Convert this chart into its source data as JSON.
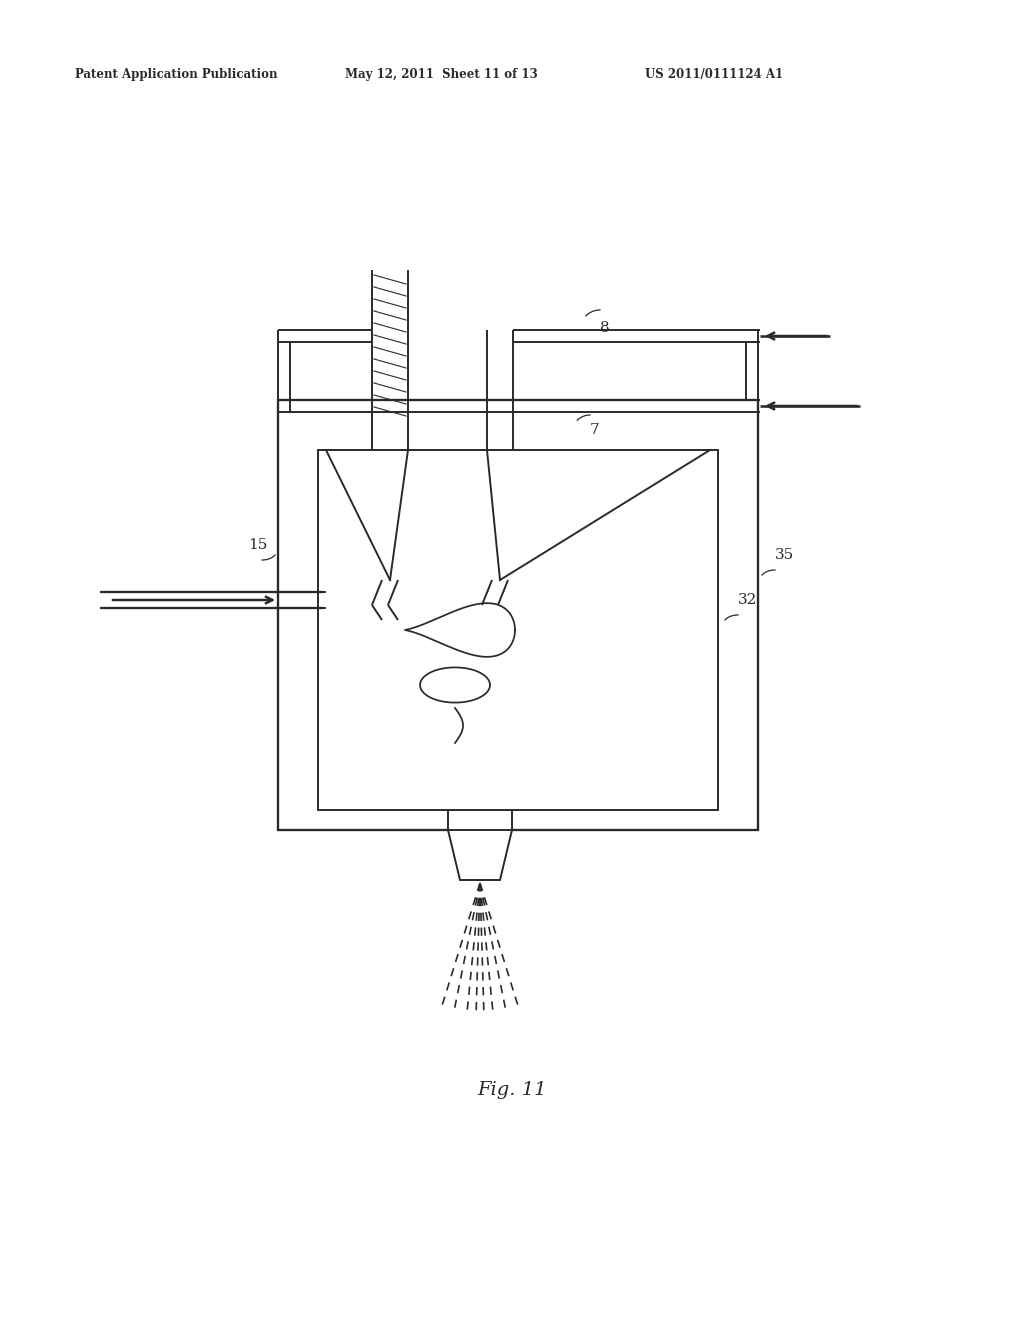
{
  "title_left": "Patent Application Publication",
  "title_center": "May 12, 2011  Sheet 11 of 13",
  "title_right": "US 2011/0111124 A1",
  "fig_label": "Fig. 11",
  "bg_color": "#ffffff",
  "line_color": "#2a2a2a",
  "lw": 1.4
}
